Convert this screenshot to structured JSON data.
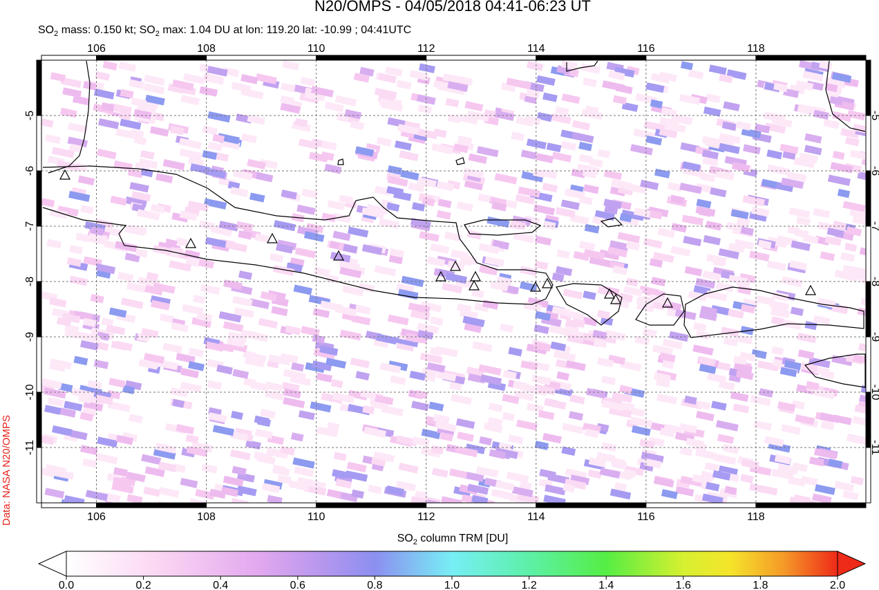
{
  "title": "N20/OMPS - 04/05/2018 04:41-06:23 UT",
  "subtitle": [
    "SO",
    "2",
    " mass: 0.150 kt; SO",
    "2",
    " max: 1.04 DU at lon: 119.20 lat: -10.99 ; 04:41UTC"
  ],
  "credit": "Data: NASA N20/OMPS",
  "map": {
    "xlim": [
      105,
      120
    ],
    "ylim": [
      -12,
      -4
    ],
    "xticks": [
      106,
      108,
      110,
      112,
      114,
      116,
      118
    ],
    "yticks": [
      -5,
      -6,
      -7,
      -8,
      -9,
      -10,
      -11
    ]
  },
  "colorbar": {
    "label": [
      "SO",
      "2",
      " column TRM [DU]"
    ],
    "lim": [
      0,
      2
    ],
    "ticks": [
      {
        "value": 0,
        "label": "0.0"
      },
      {
        "value": 0.2,
        "label": "0.2"
      },
      {
        "value": 0.4,
        "label": "0.4"
      },
      {
        "value": 0.6,
        "label": "0.6"
      },
      {
        "value": 0.8,
        "label": "0.8"
      },
      {
        "value": 1,
        "label": "1.0"
      },
      {
        "value": 1.2,
        "label": "1.2"
      },
      {
        "value": 1.4,
        "label": "1.4"
      },
      {
        "value": 1.6,
        "label": "1.6"
      },
      {
        "value": 1.8,
        "label": "1.8"
      },
      {
        "value": 2,
        "label": "2.0"
      }
    ]
  }
}
